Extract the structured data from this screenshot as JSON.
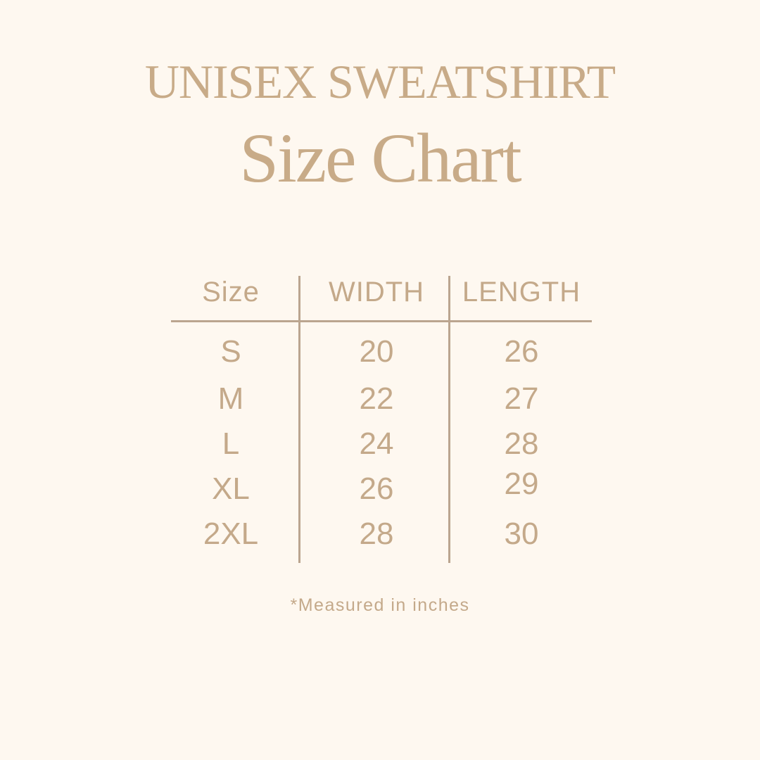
{
  "title": {
    "line1": "UNISEX SWEATSHIRT",
    "line2": "Size Chart"
  },
  "table": {
    "headers": [
      "Size",
      "WIDTH",
      "LENGTH"
    ],
    "rows": [
      [
        "S",
        "20",
        "26"
      ],
      [
        "M",
        "22",
        "27"
      ],
      [
        "L",
        "24",
        "28"
      ],
      [
        "XL",
        "26",
        "29"
      ],
      [
        "2XL",
        "28",
        "30"
      ]
    ]
  },
  "footnote": "*Measured in inches",
  "colors": {
    "background": "#fef8f0",
    "text": "#c4a98a",
    "lines": "#bba58f"
  }
}
